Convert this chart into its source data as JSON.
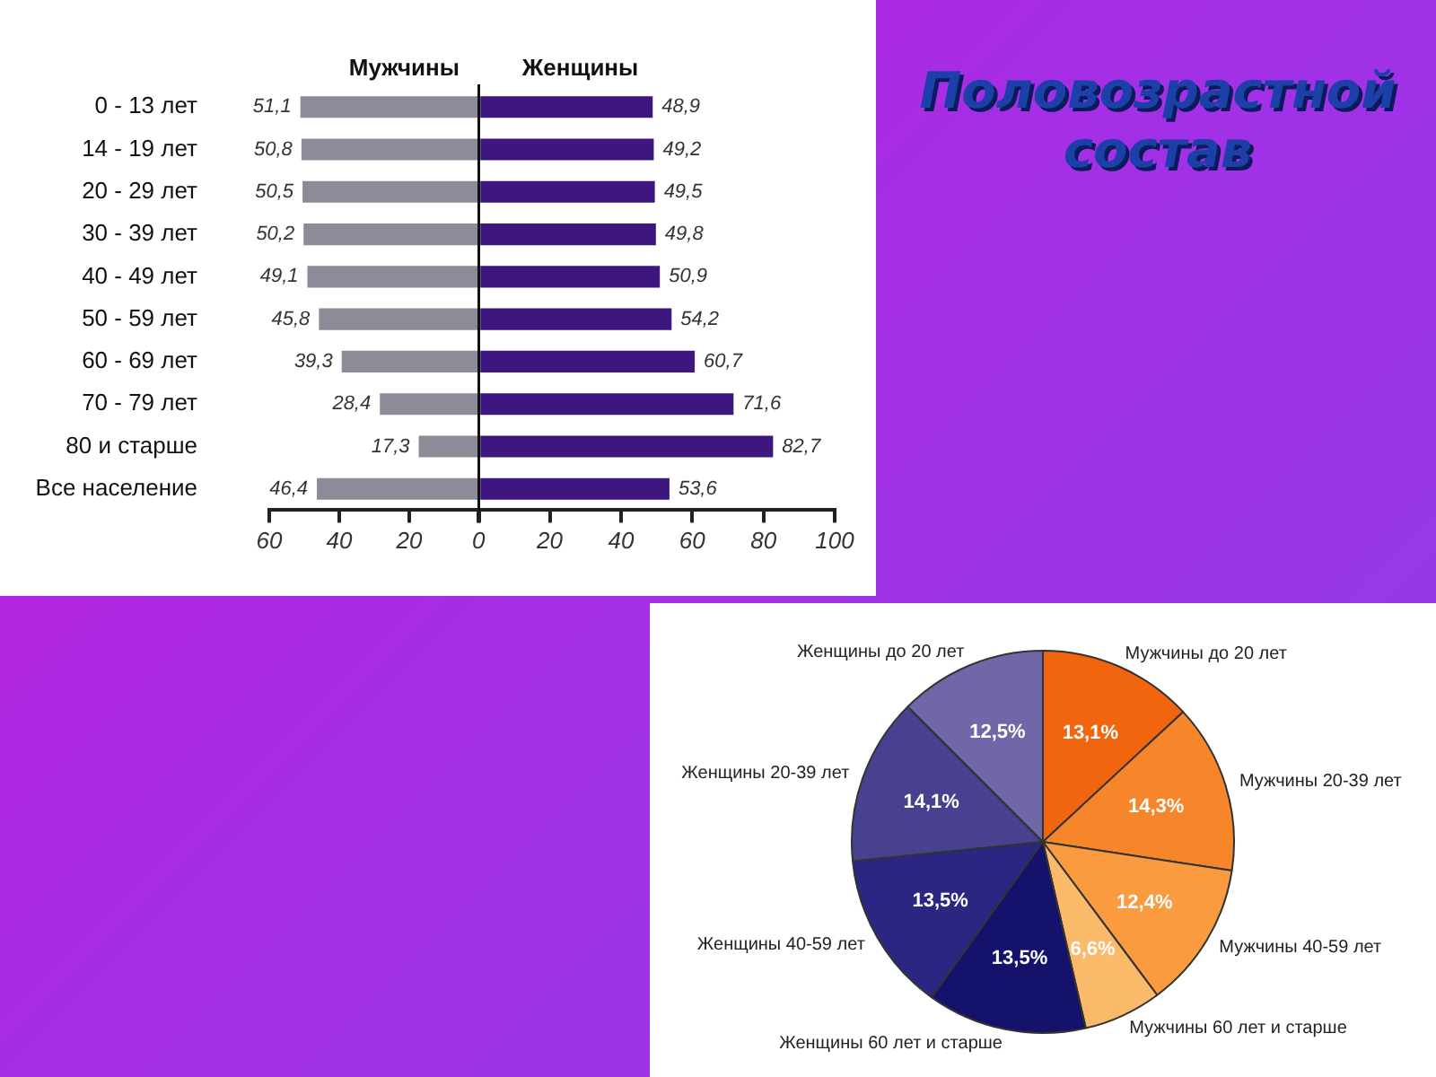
{
  "chart_data": [
    {
      "type": "bar",
      "orientation": "horizontal",
      "categories": [
        "0 - 13 лет",
        "14 - 19 лет",
        "20 - 29 лет",
        "30 - 39 лет",
        "40 - 49 лет",
        "50 - 59 лет",
        "60 - 69 лет",
        "70 - 79 лет",
        "80 и старше",
        "Все население"
      ],
      "series": [
        {
          "name": "Мужчины",
          "color": "#8c8c99",
          "values": [
            51.1,
            50.8,
            50.5,
            50.2,
            49.1,
            45.8,
            39.3,
            28.4,
            17.3,
            46.4
          ],
          "value_labels": [
            "51,1",
            "50,8",
            "50,5",
            "50,2",
            "49,1",
            "45,8",
            "39,3",
            "28,4",
            "17,3",
            "46,4"
          ]
        }
      ],
      "xlim": [
        60,
        0
      ],
      "xticks": [
        60,
        40,
        20,
        {
          "value": 0,
          "label": null
        }
      ],
      "grid": false,
      "legend": false
    },
    {
      "type": "bar",
      "orientation": "horizontal",
      "categories": [
        null,
        null,
        null,
        null,
        null,
        null,
        null,
        null,
        null,
        null
      ],
      "series": [
        {
          "name": "Женщины",
          "color": "#3d1680",
          "values": [
            48.9,
            49.2,
            49.5,
            49.8,
            50.9,
            54.2,
            60.7,
            71.6,
            82.7,
            53.6
          ],
          "value_labels": [
            "48,9",
            "49,2",
            "49,5",
            "49,8",
            "50,9",
            "54,2",
            "60,7",
            "71,6",
            "82,7",
            "53,6"
          ]
        }
      ],
      "xlim": [
        0,
        100
      ],
      "xticks": [
        0,
        20,
        40,
        60,
        80,
        100
      ],
      "tick_labels": "x",
      "grid": false,
      "legend": false
    },
    {
      "type": "other",
      "title": "Половозрастной состав"
    },
    {
      "type": "pie",
      "categories": [
        "Мужчины до 20 лет",
        "Мужчины 20-39 лет",
        "Мужчины 40-59 лет",
        "Мужчины 60 лет и старше",
        "Женщины 60 лет и старше",
        "Женщины 40-59 лет",
        "Женщины 20-39 лет",
        "Женщины до 20 лет"
      ],
      "values": [
        13.1,
        14.3,
        12.4,
        6.6,
        13.5,
        13.5,
        14.1,
        12.5
      ],
      "value_labels": [
        "13,1%",
        "14,3%",
        "12,4%",
        "6,6%",
        "13,5%",
        "13,5%",
        "14,1%",
        "12,5%"
      ],
      "colors": [
        "#f2650f",
        "#f7862a",
        "#f99b3e",
        "#fbb96a",
        "#15126b",
        "#2b2681",
        "#48418f",
        "#6f67a8"
      ],
      "legend": false
    }
  ]
}
